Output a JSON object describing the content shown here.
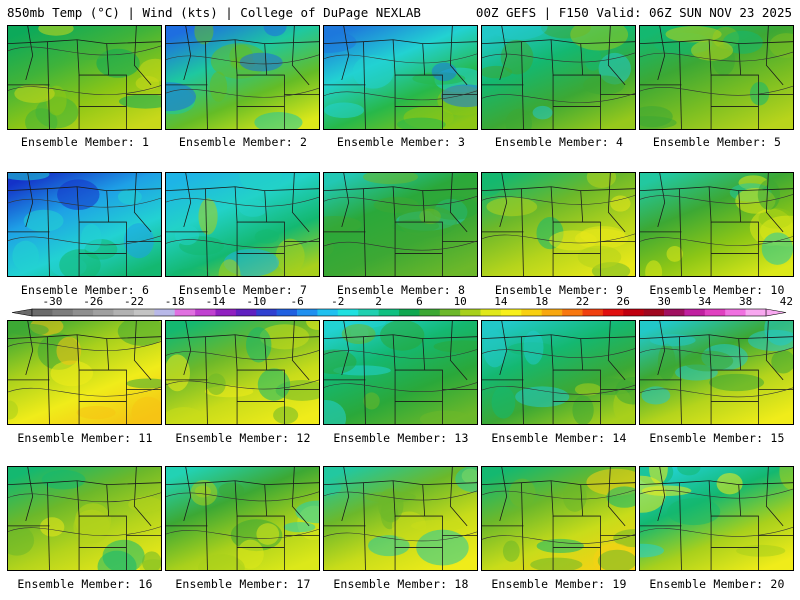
{
  "header": {
    "left": "850mb Temp (°C) | Wind (kts) | College of DuPage NEXLAB",
    "right": "00Z GEFS | F150 Valid: 06Z SUN NOV 23 2025"
  },
  "members": [
    {
      "label": "Ensemble Member: 1",
      "colors": [
        "#0ca95a",
        "#3fb33a",
        "#8cc616",
        "#c8d81a"
      ]
    },
    {
      "label": "Ensemble Member: 2",
      "colors": [
        "#1e6ee0",
        "#1ec8a0",
        "#64bc26",
        "#dde81a"
      ]
    },
    {
      "label": "Ensemble Member: 3",
      "colors": [
        "#1e78dc",
        "#22d2d2",
        "#27b84a",
        "#8cc616"
      ]
    },
    {
      "label": "Ensemble Member: 4",
      "colors": [
        "#22c8c8",
        "#14b870",
        "#3ca834",
        "#96c81c"
      ]
    },
    {
      "label": "Ensemble Member: 5",
      "colors": [
        "#14b870",
        "#3ca834",
        "#7abe22",
        "#b8d41c"
      ]
    },
    {
      "label": "Ensemble Member: 6",
      "colors": [
        "#1432c8",
        "#1ea0e6",
        "#22d2d2",
        "#14b870"
      ]
    },
    {
      "label": "Ensemble Member: 7",
      "colors": [
        "#1eb4e6",
        "#22d2c8",
        "#14b870",
        "#a8d01c"
      ]
    },
    {
      "label": "Ensemble Member: 8",
      "colors": [
        "#22c8b4",
        "#2aa83a",
        "#3ca834",
        "#6cb82a"
      ]
    },
    {
      "label": "Ensemble Member: 9",
      "colors": [
        "#14b870",
        "#6cb82a",
        "#b4d41c",
        "#e8e81a"
      ]
    },
    {
      "label": "Ensemble Member: 10",
      "colors": [
        "#22c8a0",
        "#3ca834",
        "#8cc616",
        "#dce81a"
      ]
    },
    {
      "label": "Ensemble Member: 11",
      "colors": [
        "#3ca834",
        "#a8d01c",
        "#f0ec1a",
        "#f5c414"
      ]
    },
    {
      "label": "Ensemble Member: 12",
      "colors": [
        "#14b870",
        "#6cb82a",
        "#c8dc1a",
        "#f0ec1a"
      ]
    },
    {
      "label": "Ensemble Member: 13",
      "colors": [
        "#22d2d2",
        "#14b870",
        "#2aa83a",
        "#6cb82a"
      ]
    },
    {
      "label": "Ensemble Member: 14",
      "colors": [
        "#22c8c8",
        "#14b870",
        "#3ca834",
        "#a8d01c"
      ]
    },
    {
      "label": "Ensemble Member: 15",
      "colors": [
        "#22c8c8",
        "#3ca834",
        "#b4d41c",
        "#f0ec1a"
      ]
    },
    {
      "label": "Ensemble Member: 16",
      "colors": [
        "#14b870",
        "#6cb82a",
        "#b4d41c",
        "#e8e81a"
      ]
    },
    {
      "label": "Ensemble Member: 17",
      "colors": [
        "#22d2b4",
        "#3ca834",
        "#a8d01c",
        "#dce81a"
      ]
    },
    {
      "label": "Ensemble Member: 18",
      "colors": [
        "#22c8a0",
        "#6cb82a",
        "#c8dc1a",
        "#f0ec1a"
      ]
    },
    {
      "label": "Ensemble Member: 19",
      "colors": [
        "#14b870",
        "#6cb82a",
        "#c8dc1a",
        "#f5d214"
      ]
    },
    {
      "label": "Ensemble Member: 20",
      "colors": [
        "#22d2d2",
        "#14b870",
        "#a8d01c",
        "#f0ec1a"
      ]
    }
  ],
  "colorbar": {
    "ticks": [
      "-30",
      "-26",
      "-22",
      "-18",
      "-14",
      "-10",
      "-6",
      "-2",
      "2",
      "6",
      "10",
      "14",
      "18",
      "22",
      "26",
      "30",
      "34",
      "38",
      "42"
    ],
    "colors": [
      "#6b6b6b",
      "#7d7d7d",
      "#8f8f8f",
      "#a0a0a0",
      "#b2b2b2",
      "#c4c4c4",
      "#b8b8e8",
      "#e070e0",
      "#c040d0",
      "#9020c0",
      "#6020c0",
      "#3040d0",
      "#2060e0",
      "#2090f0",
      "#20c0f0",
      "#20e0e0",
      "#20d0b0",
      "#10c080",
      "#10a850",
      "#3ca834",
      "#6cb82a",
      "#a8d01c",
      "#e0e81a",
      "#f8f01a",
      "#f8d010",
      "#f8a810",
      "#f87810",
      "#f04010",
      "#e01010",
      "#c00010",
      "#a00820",
      "#a01060",
      "#c020a0",
      "#e040c0",
      "#f070e0",
      "#f8a8f0"
    ]
  }
}
